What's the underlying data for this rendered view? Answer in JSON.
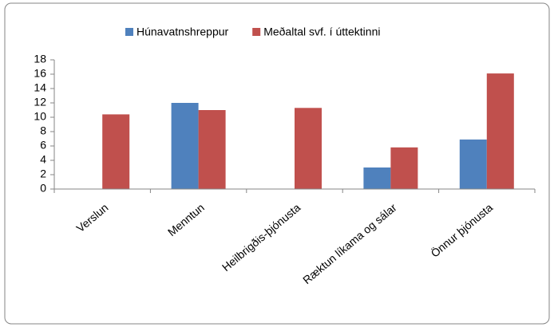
{
  "chart_data": {
    "type": "bar",
    "categories": [
      "Verslun",
      "Menntun",
      "Heilbrigðis-þjónusta",
      "Ræktun líkama og sálar",
      "Önnur þjónusta"
    ],
    "series": [
      {
        "name": "Húnavatnshreppur",
        "color": "#4f81bd",
        "values": [
          0,
          12,
          0,
          3,
          6.9
        ]
      },
      {
        "name": "Meðaltal svf. í úttektinni",
        "color": "#c0504d",
        "values": [
          10.4,
          11,
          11.3,
          5.8,
          16.1
        ]
      }
    ],
    "ylim": [
      0,
      18
    ],
    "yticks": [
      0,
      2,
      4,
      6,
      8,
      10,
      12,
      14,
      16,
      18
    ],
    "grid": false,
    "legend": "top"
  }
}
